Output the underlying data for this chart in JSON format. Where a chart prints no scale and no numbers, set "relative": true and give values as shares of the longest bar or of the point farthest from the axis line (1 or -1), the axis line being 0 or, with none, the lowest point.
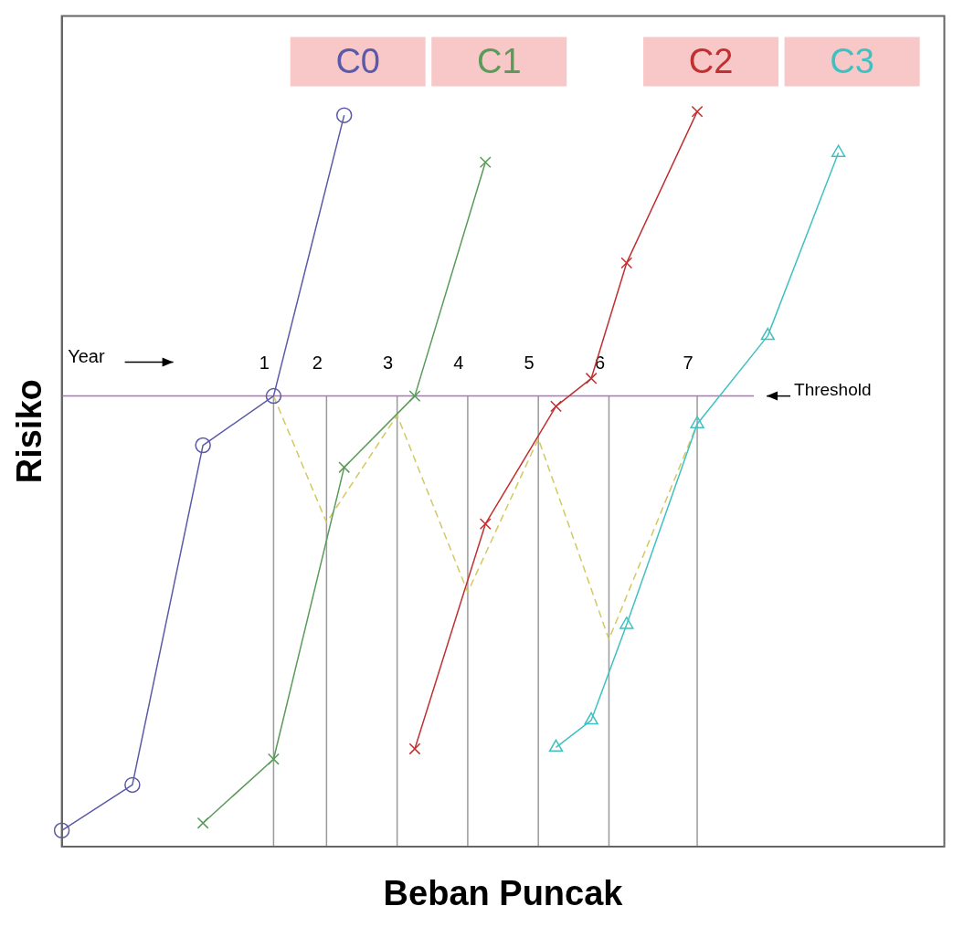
{
  "chart_data": {
    "type": "line",
    "xlabel": "Beban Puncak",
    "ylabel": "Risiko",
    "relative": true,
    "legend": "top",
    "categories": [
      null,
      null,
      null,
      null,
      null,
      null,
      null,
      null,
      null,
      null,
      null,
      null,
      null,
      null,
      null,
      null,
      null,
      null,
      null,
      null,
      null,
      null,
      null,
      null,
      null,
      null,
      null,
      null,
      null,
      null,
      null,
      null,
      null,
      null,
      null,
      null,
      null,
      null,
      null,
      null,
      null,
      null,
      null,
      null,
      null,
      null,
      null,
      null,
      null,
      null,
      null
    ],
    "series": [
      {
        "name": "C0",
        "color": "#5a5aa8",
        "marker": "circle",
        "values": [
          0.022,
          null,
          null,
          null,
          0.084,
          null,
          null,
          null,
          0.546,
          null,
          null,
          null,
          0.613,
          null,
          null,
          null,
          0.995,
          null,
          null,
          null,
          null,
          null,
          null,
          null,
          null,
          null,
          null,
          null,
          null,
          null,
          null,
          null,
          null,
          null,
          null,
          null,
          null,
          null,
          null,
          null,
          null,
          null,
          null,
          null,
          null,
          null,
          null,
          null,
          null,
          null,
          null
        ]
      },
      {
        "name": "C1",
        "color": "#5a9a5a",
        "marker": "cross",
        "values": [
          null,
          null,
          null,
          null,
          null,
          null,
          null,
          null,
          0.032,
          null,
          null,
          null,
          0.119,
          null,
          null,
          null,
          0.516,
          null,
          null,
          null,
          0.613,
          null,
          null,
          null,
          0.931,
          null,
          null,
          null,
          null,
          null,
          null,
          null,
          null,
          null,
          null,
          null,
          null,
          null,
          null,
          null,
          null,
          null,
          null,
          null,
          null,
          null,
          null,
          null,
          null,
          null,
          null
        ]
      },
      {
        "name": "C2",
        "color": "#c03030",
        "marker": "cross",
        "values": [
          null,
          null,
          null,
          null,
          null,
          null,
          null,
          null,
          null,
          null,
          null,
          null,
          null,
          null,
          null,
          null,
          null,
          null,
          null,
          null,
          0.133,
          null,
          null,
          null,
          0.439,
          null,
          null,
          null,
          0.599,
          null,
          0.637,
          null,
          0.794,
          null,
          null,
          null,
          1.0,
          null,
          null,
          null,
          null,
          null,
          null,
          null,
          null,
          null,
          null,
          null,
          null,
          null,
          null
        ]
      },
      {
        "name": "C3",
        "color": "#40c0c0",
        "marker": "triangle",
        "values": [
          null,
          null,
          null,
          null,
          null,
          null,
          null,
          null,
          null,
          null,
          null,
          null,
          null,
          null,
          null,
          null,
          null,
          null,
          null,
          null,
          null,
          null,
          null,
          null,
          null,
          null,
          null,
          null,
          0.135,
          null,
          0.172,
          null,
          0.302,
          null,
          null,
          null,
          0.575,
          null,
          null,
          null,
          0.695,
          null,
          null,
          null,
          0.944,
          null,
          null,
          null,
          null,
          null,
          null
        ]
      },
      {
        "color": "#d4c860",
        "marker": "none",
        "line_style": "dashed",
        "values": [
          null,
          null,
          null,
          null,
          null,
          null,
          null,
          null,
          null,
          null,
          null,
          null,
          0.613,
          null,
          null,
          0.441,
          null,
          null,
          null,
          0.587,
          null,
          null,
          null,
          0.346,
          null,
          null,
          null,
          0.555,
          null,
          null,
          null,
          0.282,
          null,
          null,
          null,
          null,
          0.575,
          null,
          null,
          null,
          null,
          null,
          null,
          null,
          null,
          null,
          null,
          null,
          null,
          null,
          null
        ]
      }
    ],
    "ref_lines": [
      {
        "axis": "y",
        "value": 0.613,
        "label": "Threshold",
        "color": "#b070c0"
      }
    ],
    "annotations": [
      "Year",
      "1",
      "2",
      "3",
      "4",
      "5",
      "6",
      "7"
    ]
  }
}
